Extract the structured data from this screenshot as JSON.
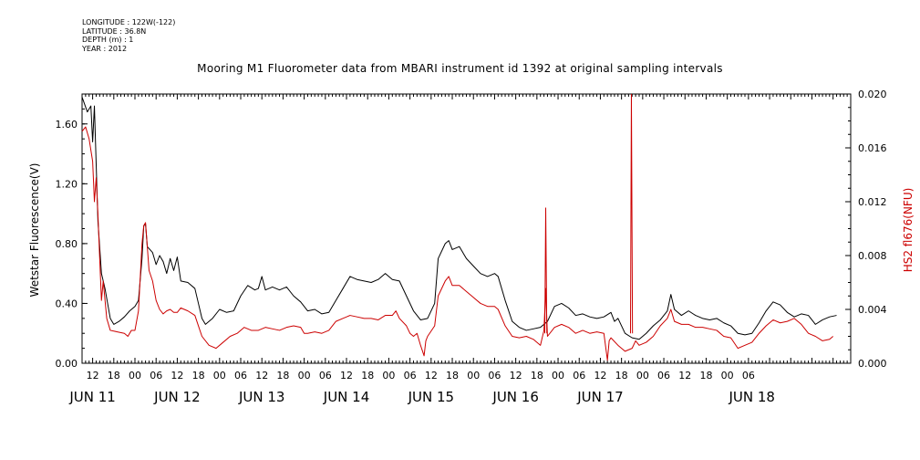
{
  "metadata": {
    "longitude": "LONGITUDE : 122W(-122)",
    "latitude": "LATITUDE : 36.8N",
    "depth": "DEPTH (m) : 1",
    "year": "YEAR : 2012"
  },
  "chart_data": {
    "type": "line",
    "title": "Mooring M1 Fluorometer data from MBARI instrument id 1392 at original sampling intervals",
    "ylabel_left": "Wetstar Fluorescence(V)",
    "ylabel_right": "HS2 fl676(NFU)",
    "ylim_left": [
      0,
      1.8
    ],
    "ylim_right": [
      0,
      0.02
    ],
    "yticks_left": [
      "0.00",
      "0.40",
      "0.80",
      "1.20",
      "1.60"
    ],
    "yticks_right": [
      "0.000",
      "0.004",
      "0.008",
      "0.012",
      "0.016",
      "0.020"
    ],
    "x_start_label": "JUN 11 09:00",
    "x_end_label": "JUN 18 11:00",
    "hour_ticks": [
      "12",
      "18",
      "00",
      "06",
      "12",
      "18",
      "00",
      "06",
      "12",
      "18",
      "00",
      "06",
      "12",
      "18",
      "00",
      "06",
      "12",
      "18",
      "00",
      "06",
      "12",
      "18",
      "00",
      "06",
      "12",
      "18",
      "00",
      "06",
      "12",
      "18",
      "00",
      "06"
    ],
    "date_labels": [
      "JUN 11",
      "JUN 12",
      "JUN 13",
      "JUN 14",
      "JUN 15",
      "JUN 16",
      "JUN 17",
      "JUN 18"
    ],
    "series_colors": [
      "#000000",
      "#cc0000"
    ],
    "series": [
      {
        "axis": "left",
        "color": "#000000",
        "points": [
          [
            0,
            1.78
          ],
          [
            1.5,
            1.68
          ],
          [
            2.5,
            1.72
          ],
          [
            3,
            1.48
          ],
          [
            3.5,
            1.72
          ],
          [
            4.5,
            0.95
          ],
          [
            5.5,
            0.6
          ],
          [
            6.5,
            0.5
          ],
          [
            8,
            0.3
          ],
          [
            9,
            0.26
          ],
          [
            10.5,
            0.28
          ],
          [
            12,
            0.31
          ],
          [
            13.5,
            0.35
          ],
          [
            15,
            0.38
          ],
          [
            16,
            0.42
          ],
          [
            17,
            0.7
          ],
          [
            17.5,
            0.92
          ],
          [
            18,
            0.93
          ],
          [
            18.5,
            0.78
          ],
          [
            20,
            0.74
          ],
          [
            21,
            0.66
          ],
          [
            22,
            0.72
          ],
          [
            23,
            0.68
          ],
          [
            24,
            0.6
          ],
          [
            25,
            0.7
          ],
          [
            26,
            0.62
          ],
          [
            27,
            0.71
          ],
          [
            28,
            0.55
          ],
          [
            30,
            0.54
          ],
          [
            32,
            0.5
          ],
          [
            33,
            0.4
          ],
          [
            34,
            0.3
          ],
          [
            35,
            0.26
          ],
          [
            37,
            0.3
          ],
          [
            39,
            0.36
          ],
          [
            41,
            0.34
          ],
          [
            43,
            0.35
          ],
          [
            45,
            0.45
          ],
          [
            47,
            0.52
          ],
          [
            49,
            0.49
          ],
          [
            50,
            0.5
          ],
          [
            51,
            0.58
          ],
          [
            52,
            0.49
          ],
          [
            54,
            0.51
          ],
          [
            56,
            0.49
          ],
          [
            58,
            0.51
          ],
          [
            60,
            0.45
          ],
          [
            62,
            0.41
          ],
          [
            64,
            0.35
          ],
          [
            66,
            0.36
          ],
          [
            68,
            0.33
          ],
          [
            70,
            0.34
          ],
          [
            72,
            0.42
          ],
          [
            74,
            0.5
          ],
          [
            76,
            0.58
          ],
          [
            78,
            0.56
          ],
          [
            80,
            0.55
          ],
          [
            82,
            0.54
          ],
          [
            84,
            0.56
          ],
          [
            86,
            0.6
          ],
          [
            88,
            0.56
          ],
          [
            90,
            0.55
          ],
          [
            92,
            0.45
          ],
          [
            94,
            0.35
          ],
          [
            96,
            0.29
          ],
          [
            98,
            0.3
          ],
          [
            100,
            0.4
          ],
          [
            101,
            0.7
          ],
          [
            103,
            0.8
          ],
          [
            104,
            0.82
          ],
          [
            105,
            0.76
          ],
          [
            107,
            0.78
          ],
          [
            109,
            0.7
          ],
          [
            111,
            0.65
          ],
          [
            113,
            0.6
          ],
          [
            115,
            0.58
          ],
          [
            117,
            0.6
          ],
          [
            118,
            0.58
          ],
          [
            120,
            0.42
          ],
          [
            122,
            0.28
          ],
          [
            124,
            0.24
          ],
          [
            126,
            0.22
          ],
          [
            128,
            0.23
          ],
          [
            130,
            0.24
          ],
          [
            132,
            0.28
          ],
          [
            134,
            0.38
          ],
          [
            136,
            0.4
          ],
          [
            138,
            0.37
          ],
          [
            140,
            0.32
          ],
          [
            142,
            0.33
          ],
          [
            144,
            0.31
          ],
          [
            146,
            0.3
          ],
          [
            148,
            0.31
          ],
          [
            150,
            0.34
          ],
          [
            151,
            0.28
          ],
          [
            152,
            0.3
          ],
          [
            154,
            0.2
          ],
          [
            156,
            0.17
          ],
          [
            158,
            0.16
          ],
          [
            160,
            0.2
          ],
          [
            162,
            0.25
          ],
          [
            164,
            0.29
          ],
          [
            166,
            0.35
          ],
          [
            167,
            0.46
          ],
          [
            168,
            0.36
          ],
          [
            170,
            0.32
          ],
          [
            172,
            0.35
          ],
          [
            174,
            0.32
          ],
          [
            176,
            0.3
          ],
          [
            178,
            0.29
          ],
          [
            180,
            0.3
          ],
          [
            182,
            0.27
          ],
          [
            184,
            0.25
          ],
          [
            186,
            0.2
          ],
          [
            188,
            0.19
          ],
          [
            190,
            0.2
          ],
          [
            192,
            0.27
          ],
          [
            194,
            0.35
          ],
          [
            196,
            0.41
          ],
          [
            198,
            0.39
          ],
          [
            200,
            0.34
          ],
          [
            202,
            0.31
          ],
          [
            204,
            0.33
          ],
          [
            206,
            0.32
          ],
          [
            208,
            0.26
          ],
          [
            210,
            0.29
          ],
          [
            212,
            0.31
          ],
          [
            214,
            0.32
          ]
        ]
      },
      {
        "axis": "left",
        "color": "#cc0000",
        "points": [
          [
            0,
            1.55
          ],
          [
            1,
            1.58
          ],
          [
            2,
            1.5
          ],
          [
            3,
            1.35
          ],
          [
            3.5,
            1.08
          ],
          [
            4,
            1.24
          ],
          [
            4.5,
            1.0
          ],
          [
            5,
            0.7
          ],
          [
            5.5,
            0.42
          ],
          [
            6,
            0.55
          ],
          [
            7,
            0.3
          ],
          [
            8,
            0.22
          ],
          [
            10,
            0.21
          ],
          [
            12,
            0.2
          ],
          [
            13,
            0.18
          ],
          [
            14,
            0.22
          ],
          [
            15,
            0.22
          ],
          [
            16,
            0.35
          ],
          [
            17,
            0.8
          ],
          [
            17.5,
            0.92
          ],
          [
            18,
            0.94
          ],
          [
            19,
            0.62
          ],
          [
            20,
            0.55
          ],
          [
            21,
            0.42
          ],
          [
            22,
            0.36
          ],
          [
            23,
            0.33
          ],
          [
            24,
            0.35
          ],
          [
            25,
            0.36
          ],
          [
            26,
            0.34
          ],
          [
            27,
            0.34
          ],
          [
            28,
            0.37
          ],
          [
            30,
            0.35
          ],
          [
            32,
            0.32
          ],
          [
            33,
            0.25
          ],
          [
            34,
            0.18
          ],
          [
            36,
            0.12
          ],
          [
            38,
            0.1
          ],
          [
            40,
            0.14
          ],
          [
            42,
            0.18
          ],
          [
            44,
            0.2
          ],
          [
            46,
            0.24
          ],
          [
            48,
            0.22
          ],
          [
            50,
            0.22
          ],
          [
            52,
            0.24
          ],
          [
            54,
            0.23
          ],
          [
            56,
            0.22
          ],
          [
            58,
            0.24
          ],
          [
            60,
            0.25
          ],
          [
            62,
            0.24
          ],
          [
            63,
            0.2
          ],
          [
            64,
            0.2
          ],
          [
            66,
            0.21
          ],
          [
            68,
            0.2
          ],
          [
            70,
            0.22
          ],
          [
            72,
            0.28
          ],
          [
            74,
            0.3
          ],
          [
            76,
            0.32
          ],
          [
            78,
            0.31
          ],
          [
            80,
            0.3
          ],
          [
            82,
            0.3
          ],
          [
            84,
            0.29
          ],
          [
            86,
            0.32
          ],
          [
            88,
            0.32
          ],
          [
            89,
            0.35
          ],
          [
            90,
            0.3
          ],
          [
            92,
            0.25
          ],
          [
            93,
            0.2
          ],
          [
            94,
            0.18
          ],
          [
            95,
            0.2
          ],
          [
            96,
            0.12
          ],
          [
            97,
            0.05
          ],
          [
            97.5,
            0.15
          ],
          [
            98,
            0.18
          ],
          [
            100,
            0.25
          ],
          [
            101,
            0.45
          ],
          [
            103,
            0.55
          ],
          [
            104,
            0.58
          ],
          [
            105,
            0.52
          ],
          [
            107,
            0.52
          ],
          [
            109,
            0.48
          ],
          [
            111,
            0.44
          ],
          [
            113,
            0.4
          ],
          [
            115,
            0.38
          ],
          [
            117,
            0.38
          ],
          [
            118,
            0.36
          ],
          [
            120,
            0.25
          ],
          [
            122,
            0.18
          ],
          [
            124,
            0.17
          ],
          [
            126,
            0.18
          ],
          [
            128,
            0.16
          ],
          [
            130,
            0.12
          ],
          [
            131,
            0.22
          ],
          [
            131.5,
            0.5
          ],
          [
            131.8,
            0.3
          ],
          [
            132,
            0.18
          ],
          [
            134,
            0.24
          ],
          [
            136,
            0.26
          ],
          [
            138,
            0.24
          ],
          [
            140,
            0.2
          ],
          [
            142,
            0.22
          ],
          [
            144,
            0.2
          ],
          [
            146,
            0.21
          ],
          [
            148,
            0.2
          ],
          [
            149,
            0.02
          ],
          [
            149.5,
            0.15
          ],
          [
            150,
            0.17
          ],
          [
            152,
            0.12
          ],
          [
            153,
            0.1
          ],
          [
            154,
            0.08
          ],
          [
            156,
            0.1
          ],
          [
            157,
            0.15
          ],
          [
            158,
            0.12
          ],
          [
            160,
            0.14
          ],
          [
            162,
            0.18
          ],
          [
            164,
            0.25
          ],
          [
            166,
            0.3
          ],
          [
            167,
            0.36
          ],
          [
            168,
            0.28
          ],
          [
            170,
            0.26
          ],
          [
            172,
            0.26
          ],
          [
            174,
            0.24
          ],
          [
            176,
            0.24
          ],
          [
            178,
            0.23
          ],
          [
            180,
            0.22
          ],
          [
            182,
            0.18
          ],
          [
            184,
            0.17
          ],
          [
            186,
            0.1
          ],
          [
            188,
            0.12
          ],
          [
            190,
            0.14
          ],
          [
            192,
            0.2
          ],
          [
            194,
            0.25
          ],
          [
            196,
            0.29
          ],
          [
            198,
            0.27
          ],
          [
            200,
            0.28
          ],
          [
            202,
            0.3
          ],
          [
            204,
            0.26
          ],
          [
            206,
            0.2
          ],
          [
            208,
            0.18
          ],
          [
            210,
            0.15
          ],
          [
            212,
            0.16
          ],
          [
            213,
            0.18
          ]
        ]
      }
    ],
    "spikes": [
      {
        "t": 131.5,
        "value": 1.04
      },
      {
        "t": 155.8,
        "value": 1.8
      }
    ]
  }
}
